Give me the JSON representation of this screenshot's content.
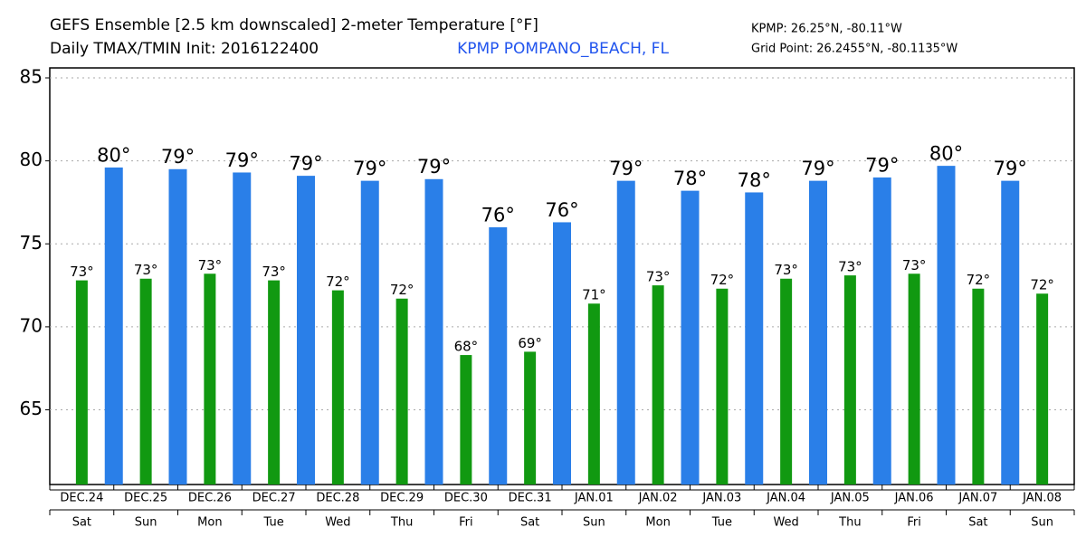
{
  "chart_data": {
    "type": "bar",
    "title": "GEFS Ensemble [2.5 km downscaled] 2-meter Temperature [°F]",
    "subtitle": "Daily TMAX/TMIN Init: 2016122400",
    "station": "KPMP POMPANO_BEACH, FL",
    "location": "KPMP: 26.25°N, -80.11°W",
    "grid_point": "Grid Point: 26.2455°N, -80.1135°W",
    "categories": [
      "DEC.24",
      "DEC.25",
      "DEC.26",
      "DEC.27",
      "DEC.28",
      "DEC.29",
      "DEC.30",
      "DEC.31",
      "JAN.01",
      "JAN.02",
      "JAN.03",
      "JAN.04",
      "JAN.05",
      "JAN.06",
      "JAN.07",
      "JAN.08"
    ],
    "weekdays": [
      "Sat",
      "Sun",
      "Mon",
      "Tue",
      "Wed",
      "Thu",
      "Fri",
      "Sat",
      "Sun",
      "Mon",
      "Tue",
      "Wed",
      "Thu",
      "Fri",
      "Sat",
      "Sun"
    ],
    "series": [
      {
        "name": "TMIN",
        "color": "#119911",
        "values": [
          72.8,
          72.9,
          73.2,
          72.8,
          72.2,
          71.7,
          68.3,
          68.5,
          71.4,
          72.5,
          72.3,
          72.9,
          73.1,
          73.2,
          72.3,
          72.0
        ],
        "value_labels": [
          "73°",
          "73°",
          "73°",
          "73°",
          "72°",
          "72°",
          "68°",
          "69°",
          "71°",
          "73°",
          "72°",
          "73°",
          "73°",
          "73°",
          "72°",
          "72°"
        ]
      },
      {
        "name": "TMAX",
        "color": "#2a7fe8",
        "values": [
          79.6,
          79.5,
          79.3,
          79.1,
          78.8,
          78.9,
          76.0,
          76.3,
          78.8,
          78.2,
          78.1,
          78.8,
          79.0,
          79.7,
          78.8,
          null
        ],
        "value_labels": [
          "80°",
          "79°",
          "79°",
          "79°",
          "79°",
          "79°",
          "76°",
          "76°",
          "79°",
          "78°",
          "78°",
          "79°",
          "79°",
          "80°",
          "79°",
          null
        ]
      }
    ],
    "ylim": [
      60.5,
      85.6
    ],
    "yticks": [
      65,
      70,
      75,
      80,
      85
    ],
    "grid": true
  }
}
